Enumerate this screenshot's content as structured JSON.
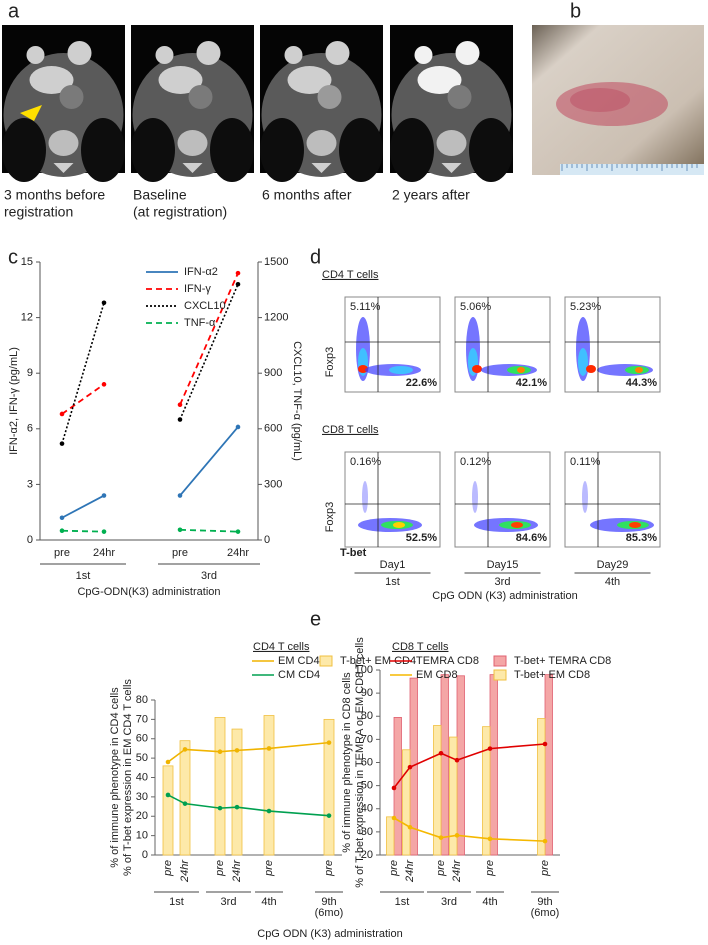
{
  "panel_a": {
    "label": "a",
    "captions": [
      [
        "3 months before",
        "registration"
      ],
      [
        "Baseline",
        "(at registration)"
      ],
      [
        "6 months after"
      ],
      [
        "2 years after"
      ]
    ]
  },
  "panel_b": {
    "label": "b"
  },
  "panel_d": {
    "label": "d",
    "y_axis": "Foxp3",
    "x_axis": "T-bet",
    "rows": [
      {
        "title": "CD4 T cells",
        "plots": [
          {
            "upper_left": "5.11%",
            "lower_right": "22.6%"
          },
          {
            "upper_left": "5.06%",
            "lower_right": "42.1%"
          },
          {
            "upper_left": "5.23%",
            "lower_right": "44.3%"
          }
        ]
      },
      {
        "title": "CD8 T cells",
        "plots": [
          {
            "upper_left": "0.16%",
            "lower_right": "52.5%"
          },
          {
            "upper_left": "0.12%",
            "lower_right": "84.6%"
          },
          {
            "upper_left": "0.11%",
            "lower_right": "85.3%"
          }
        ]
      }
    ],
    "columns": [
      {
        "day": "Day1",
        "dose": "1st"
      },
      {
        "day": "Day15",
        "dose": "3rd"
      },
      {
        "day": "Day29",
        "dose": "4th"
      }
    ],
    "xlabel": "CpG ODN (K3) administration"
  },
  "panel_e": {
    "label": "e",
    "xlabel": "CpG ODN (K3) administration"
  },
  "chart_data": [
    {
      "type": "line",
      "panel_label": "c",
      "groups": [
        {
          "name": "1st",
          "categories": [
            "pre",
            "24hr"
          ]
        },
        {
          "name": "3rd",
          "categories": [
            "pre",
            "24hr"
          ]
        }
      ],
      "xlabel": "CpG-ODN(K3) administration",
      "ylabel": "IFN-α2, IFN-γ (pg/mL)",
      "y2label": "CXCL10, TNF-α (pg/mL)",
      "ylim": [
        0,
        15
      ],
      "yticks": [
        0,
        3,
        6,
        9,
        12,
        15
      ],
      "y2lim": [
        0,
        1500
      ],
      "y2ticks": [
        0,
        300,
        600,
        900,
        1200,
        1500
      ],
      "series": [
        {
          "name": "IFN-α2",
          "color": "#2e75b6",
          "style": "solid",
          "values": [
            1.2,
            2.4,
            2.4,
            6.1
          ]
        },
        {
          "name": "IFN-γ",
          "color": "#ff0000",
          "style": "dashed",
          "values": [
            6.8,
            8.4,
            7.3,
            14.4
          ]
        },
        {
          "name": "CXCL10",
          "color": "#000000",
          "style": "dotted",
          "axis": "y2",
          "values": [
            520,
            1280,
            650,
            1380
          ]
        },
        {
          "name": "TNF-α",
          "color": "#00b050",
          "style": "dashed",
          "axis": "y2",
          "values": [
            50,
            45,
            55,
            45
          ]
        }
      ]
    },
    {
      "type": "combo",
      "title": "CD4 T cells",
      "groups": [
        {
          "name": [
            "1st"
          ],
          "categories": [
            "pre",
            "24hr"
          ]
        },
        {
          "name": [
            "3rd"
          ],
          "categories": [
            "pre",
            "24hr"
          ]
        },
        {
          "name": [
            "4th"
          ],
          "categories": [
            "pre"
          ]
        },
        {
          "name": [
            "9th",
            "(6mo)"
          ],
          "categories": [
            "pre"
          ]
        }
      ],
      "ylabel": [
        "% of immune phenotype in CD4 cells",
        "% of T-bet expression in EM CD4 T cells"
      ],
      "ylim": [
        0,
        80
      ],
      "yticks": [
        0,
        10,
        20,
        30,
        40,
        50,
        60,
        70,
        80
      ],
      "series": [
        {
          "name": "EM CD4",
          "kind": "line",
          "color": "#f0b400",
          "values": [
            48,
            54.5,
            53.3,
            54,
            55,
            58
          ]
        },
        {
          "name": "T-bet+ EM CD4",
          "kind": "bar",
          "color": "#fde9a9",
          "values": [
            46,
            59,
            71,
            65,
            72,
            70
          ]
        },
        {
          "name": "CM CD4",
          "kind": "line",
          "color": "#00a050",
          "values": [
            31,
            26.5,
            24.2,
            24.7,
            22.7,
            20.3
          ]
        }
      ]
    },
    {
      "type": "combo",
      "title": "CD8 T cells",
      "groups": [
        {
          "name": [
            "1st"
          ],
          "categories": [
            "pre",
            "24hr"
          ]
        },
        {
          "name": [
            "3rd"
          ],
          "categories": [
            "pre",
            "24hr"
          ]
        },
        {
          "name": [
            "4th"
          ],
          "categories": [
            "pre"
          ]
        },
        {
          "name": [
            "9th",
            "(6mo)"
          ],
          "categories": [
            "pre"
          ]
        }
      ],
      "ylabel": [
        "% of immune phenotype in CD8 cells",
        "% of T-bet expression in TEMRA or EM CD8 T cells"
      ],
      "ylim": [
        20,
        100
      ],
      "yticks": [
        20,
        30,
        40,
        50,
        60,
        70,
        80,
        90,
        100
      ],
      "series": [
        {
          "name": "TEMRA CD8",
          "kind": "line",
          "color": "#e00000",
          "values": [
            49,
            58,
            64,
            61,
            66,
            68
          ]
        },
        {
          "name": "T-bet+ TEMRA CD8",
          "kind": "bar",
          "color": "#f4a6a6",
          "values": [
            79.5,
            96.5,
            98,
            97.5,
            98,
            98
          ]
        },
        {
          "name": "EM CD8",
          "kind": "line",
          "color": "#f5b800",
          "values": [
            36,
            32,
            27.5,
            28.5,
            27,
            26
          ]
        },
        {
          "name": "T-bet+ EM CD8",
          "kind": "bar",
          "color": "#fde9a9",
          "values": [
            36.5,
            65.5,
            76,
            71,
            75.5,
            79
          ]
        }
      ]
    }
  ]
}
